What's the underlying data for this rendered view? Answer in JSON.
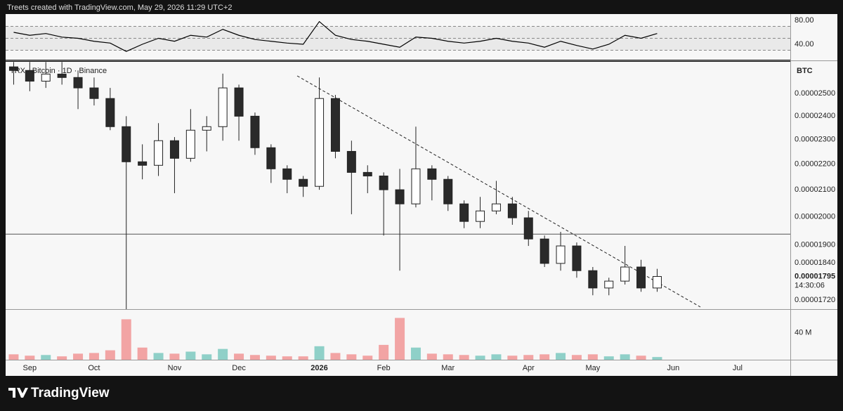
{
  "header": "Treets created with TradingView.com, May 29, 2026 11:29 UTC+2",
  "footer": {
    "logo": "TradingView"
  },
  "chart_data": [
    {
      "type": "line",
      "color": "#000000",
      "band_fill": "#e9e9e9",
      "values": [
        60,
        55,
        58,
        52,
        50,
        45,
        42,
        28,
        40,
        50,
        45,
        55,
        52,
        65,
        55,
        48,
        45,
        42,
        40,
        78,
        55,
        48,
        45,
        40,
        35,
        52,
        50,
        45,
        42,
        45,
        50,
        45,
        42,
        35,
        45,
        38,
        32,
        40,
        55,
        50,
        58,
        null,
        null,
        null,
        null,
        null,
        null,
        null
      ],
      "ylim": [
        14.1,
        90.6
      ],
      "yticks": [
        {
          "value": 80,
          "label": "80.00"
        },
        {
          "value": 40,
          "label": "40.00"
        }
      ],
      "bands": [
        70,
        50,
        30
      ]
    },
    {
      "type": "candlestick",
      "legend": "TRX · Bitcoin · 1D · Binance",
      "currency": "BTC",
      "log_scale": true,
      "up_color": "#ffffff",
      "down_color": "#2a2a2a",
      "categories": [
        null,
        "Sep",
        null,
        null,
        null,
        "Oct",
        null,
        null,
        null,
        null,
        "Nov",
        null,
        null,
        null,
        "Dec",
        null,
        null,
        null,
        null,
        "2026",
        null,
        null,
        null,
        "Feb",
        null,
        null,
        null,
        "Mar",
        null,
        null,
        null,
        null,
        "Apr",
        null,
        null,
        null,
        "May",
        null,
        null,
        null,
        null,
        "Jun",
        null,
        null,
        null,
        "Jul",
        null,
        null
      ],
      "open": [
        2.623e-05,
        2.606e-05,
        2.556e-05,
        2.589e-05,
        2.573e-05,
        2.525e-05,
        2.477e-05,
        2.354e-05,
        2.209e-05,
        2.195e-05,
        2.295e-05,
        2.223e-05,
        2.339e-05,
        2.354e-05,
        2.525e-05,
        2.399e-05,
        2.266e-05,
        2.181e-05,
        2.14e-05,
        2.113e-05,
        2.477e-05,
        2.251e-05,
        2.167e-05,
        2.153e-05,
        2.1e-05,
        2.047e-05,
        2.181e-05,
        2.14e-05,
        2.047e-05,
        1.983e-05,
        2.021e-05,
        2.047e-05,
        1.996e-05,
        1.921e-05,
        1.838e-05,
        1.897e-05,
        1.814e-05,
        1.758e-05,
        1.78e-05,
        1.826e-05,
        1.758e-05,
        null,
        null,
        null,
        null,
        null,
        null,
        null
      ],
      "high": [
        2.646e-05,
        2.646e-05,
        2.646e-05,
        2.646e-05,
        2.606e-05,
        2.573e-05,
        2.525e-05,
        2.399e-05,
        2.28e-05,
        2.369e-05,
        2.31e-05,
        2.43e-05,
        2.399e-05,
        2.591e-05,
        2.54e-05,
        2.415e-05,
        2.28e-05,
        2.195e-05,
        2.153e-05,
        2.573e-05,
        2.493e-05,
        2.295e-05,
        2.195e-05,
        2.167e-05,
        2.181e-05,
        2.354e-05,
        2.195e-05,
        2.153e-05,
        2.06e-05,
        2.073e-05,
        2.134e-05,
        2.073e-05,
        2.021e-05,
        1.933e-05,
        1.946e-05,
        1.909e-05,
        1.826e-05,
        1.791e-05,
        1.897e-05,
        1.85e-05,
        1.82e-05,
        null,
        null,
        null,
        null,
        null,
        null,
        null
      ],
      "low": [
        2.54e-05,
        2.51e-05,
        2.525e-05,
        2.54e-05,
        2.43e-05,
        2.446e-05,
        2.339e-05,
        1.692e-05,
        2.14e-05,
        2.153e-05,
        2.087e-05,
        2.209e-05,
        2.251e-05,
        2.295e-05,
        2.295e-05,
        2.237e-05,
        2.126e-05,
        2.087e-05,
        2.073e-05,
        2.1e-05,
        2.223e-05,
        2.009e-05,
        2.087e-05,
        1.933e-05,
        1.814e-05,
        2.034e-05,
        2.06e-05,
        2.021e-05,
        1.959e-05,
        1.959e-05,
        2.009e-05,
        1.971e-05,
        1.897e-05,
        1.826e-05,
        1.814e-05,
        1.791e-05,
        1.735e-05,
        1.735e-05,
        1.769e-05,
        1.746e-05,
        1.746e-05,
        null,
        null,
        null,
        null,
        null,
        null,
        null
      ],
      "close": [
        2.606e-05,
        2.556e-05,
        2.589e-05,
        2.573e-05,
        2.525e-05,
        2.477e-05,
        2.354e-05,
        2.209e-05,
        2.195e-05,
        2.295e-05,
        2.223e-05,
        2.339e-05,
        2.354e-05,
        2.525e-05,
        2.399e-05,
        2.266e-05,
        2.181e-05,
        2.14e-05,
        2.113e-05,
        2.477e-05,
        2.251e-05,
        2.167e-05,
        2.153e-05,
        2.1e-05,
        2.047e-05,
        2.181e-05,
        2.14e-05,
        2.047e-05,
        1.983e-05,
        2.021e-05,
        2.047e-05,
        1.996e-05,
        1.921e-05,
        1.838e-05,
        1.897e-05,
        1.814e-05,
        1.758e-05,
        1.78e-05,
        1.826e-05,
        1.758e-05,
        1.795e-05,
        null,
        null,
        null,
        null,
        null,
        null,
        null
      ],
      "ylim": [
        1.692e-05,
        2.647e-05
      ],
      "yticks": [
        {
          "value": 2.5e-05,
          "label": "0.00002500"
        },
        {
          "value": 2.4e-05,
          "label": "0.00002400"
        },
        {
          "value": 2.3e-05,
          "label": "0.00002300"
        },
        {
          "value": 2.2e-05,
          "label": "0.00002200"
        },
        {
          "value": 2.1e-05,
          "label": "0.00002100"
        },
        {
          "value": 2e-05,
          "label": "0.00002000"
        },
        {
          "value": 1.9e-05,
          "label": "0.00001900"
        },
        {
          "value": 1.84e-05,
          "label": "0.00001840"
        },
        {
          "value": 1.72e-05,
          "label": "0.00001720"
        }
      ],
      "level": 1.938e-05,
      "last_price": {
        "value": 1.795e-05,
        "label": "0.00001795"
      },
      "countdown": "14:30:06"
    },
    {
      "type": "bar",
      "up_color": "#8fd0c8",
      "down_color": "#f2a4a4",
      "values": [
        8000000,
        6000000,
        7000000,
        5000000,
        9000000,
        10000000,
        14000000,
        60000000,
        18000000,
        10000000,
        9000000,
        12000000,
        8000000,
        16000000,
        9000000,
        7000000,
        6000000,
        5000000,
        5000000,
        20000000,
        10000000,
        8000000,
        6000000,
        22000000,
        62000000,
        18000000,
        9000000,
        8000000,
        7000000,
        6000000,
        8000000,
        6000000,
        7000000,
        8000000,
        10000000,
        7000000,
        8000000,
        5000000,
        8000000,
        6000000,
        4000000,
        null,
        null,
        null,
        null,
        null,
        null,
        null
      ],
      "ylim": [
        0,
        74000000
      ],
      "yticks": [
        {
          "value": 40000000,
          "label": "40 M"
        }
      ]
    }
  ]
}
